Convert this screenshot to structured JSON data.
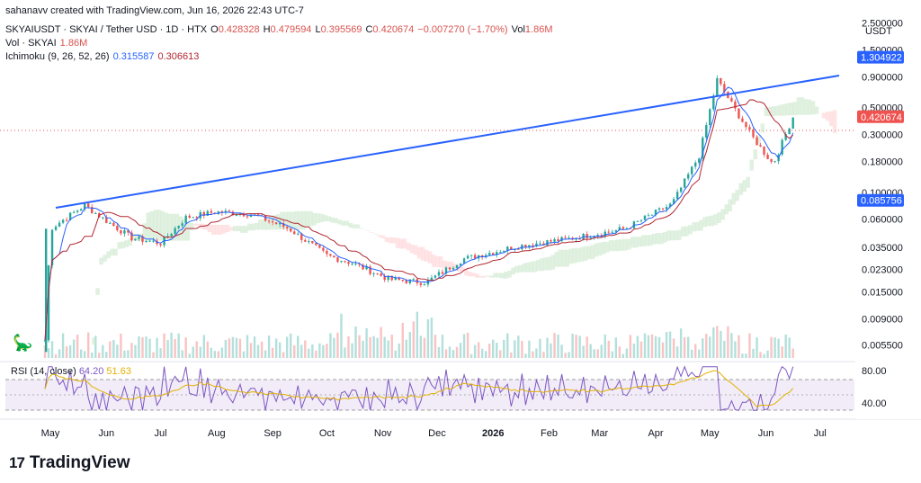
{
  "header": {
    "attribution": "sahanavv created with TradingView.com, Jun 16, 2026 22:43 UTC-7"
  },
  "symbol": {
    "title": "SKYAIUSDT · SKYAI / Tether USD · 1D · HTX",
    "open_label": "O",
    "open": "0.428328",
    "high_label": "H",
    "high": "0.479594",
    "low_label": "L",
    "low": "0.395569",
    "close_label": "C",
    "close": "0.420674",
    "change": "−0.007270 (−1.70%)",
    "vol_label": "Vol",
    "vol": "1.86M"
  },
  "volume_legend": {
    "label": "Vol · SKYAI",
    "value": "1.86M"
  },
  "ichimoku_legend": {
    "label": "Ichimoku (9, 26, 52, 26)",
    "conversion": "0.315587",
    "base": "0.306613"
  },
  "price_axis": {
    "currency": "USDT",
    "ticks": [
      "2.500000",
      "1.500000",
      "0.900000",
      "0.500000",
      "0.300000",
      "0.180000",
      "0.100000",
      "0.060000",
      "0.035000",
      "0.023000",
      "0.015000",
      "0.009000",
      "0.005500"
    ],
    "tag_trendline": "1.304922",
    "tag_close": "0.420674",
    "tag_ichimoku": "0.085756"
  },
  "rsi_axis": {
    "ticks": [
      "80.00",
      "40.00"
    ]
  },
  "rsi_legend": {
    "label": "RSI (14, close)",
    "rsi": "64.20",
    "ma": "51.63"
  },
  "time_axis": {
    "labels": [
      "May",
      "Jun",
      "Jul",
      "Aug",
      "Sep",
      "Oct",
      "Nov",
      "Dec",
      "2026",
      "Feb",
      "Mar",
      "Apr",
      "May",
      "Jun",
      "Jul"
    ]
  },
  "footer": {
    "brand": "TradingView",
    "logo": "17"
  },
  "icons": {
    "dino": "dinosaur-icon",
    "logo": "tradingview-logo-icon"
  },
  "colors": {
    "up": "#26a69a",
    "down": "#ef5350",
    "trendline": "#2962ff",
    "base_line": "#b22833",
    "conversion_line": "#2962ff",
    "rsi_line": "#7e57c2",
    "rsi_ma": "#e3b100",
    "cloud_bull": "#c8e6c9",
    "cloud_bear": "#ffcdd2"
  },
  "chart_data": {
    "type": "line",
    "title": "SKYAIUSDT · SKYAI / Tether USD · 1D · HTX",
    "y_scale": "log",
    "ylim": [
      0.0045,
      3.0
    ],
    "price_path": [
      {
        "x": "2025-04-28",
        "y": 0.006
      },
      {
        "x": "2025-05-01",
        "y": 0.05
      },
      {
        "x": "2025-05-10",
        "y": 0.062
      },
      {
        "x": "2025-05-20",
        "y": 0.078
      },
      {
        "x": "2025-06-01",
        "y": 0.058
      },
      {
        "x": "2025-06-15",
        "y": 0.042
      },
      {
        "x": "2025-07-01",
        "y": 0.038
      },
      {
        "x": "2025-07-15",
        "y": 0.062
      },
      {
        "x": "2025-08-01",
        "y": 0.069
      },
      {
        "x": "2025-08-20",
        "y": 0.066
      },
      {
        "x": "2025-09-10",
        "y": 0.05
      },
      {
        "x": "2025-10-01",
        "y": 0.03
      },
      {
        "x": "2025-10-15",
        "y": 0.026
      },
      {
        "x": "2025-11-05",
        "y": 0.019
      },
      {
        "x": "2025-11-25",
        "y": 0.018
      },
      {
        "x": "2025-12-15",
        "y": 0.028
      },
      {
        "x": "2026-01-15",
        "y": 0.036
      },
      {
        "x": "2026-02-15",
        "y": 0.042
      },
      {
        "x": "2026-03-15",
        "y": 0.05
      },
      {
        "x": "2026-04-10",
        "y": 0.08
      },
      {
        "x": "2026-04-25",
        "y": 0.2
      },
      {
        "x": "2026-05-05",
        "y": 0.85
      },
      {
        "x": "2026-05-15",
        "y": 0.48
      },
      {
        "x": "2026-05-25",
        "y": 0.28
      },
      {
        "x": "2026-06-05",
        "y": 0.17
      },
      {
        "x": "2026-06-16",
        "y": 0.42
      }
    ],
    "trendline": [
      {
        "x": "2025-05-01",
        "y": 0.088
      },
      {
        "x": "2026-07-15",
        "y": 1.304922
      }
    ],
    "rsi": {
      "ylim": [
        20,
        95
      ],
      "levels": [
        70,
        30
      ]
    }
  }
}
